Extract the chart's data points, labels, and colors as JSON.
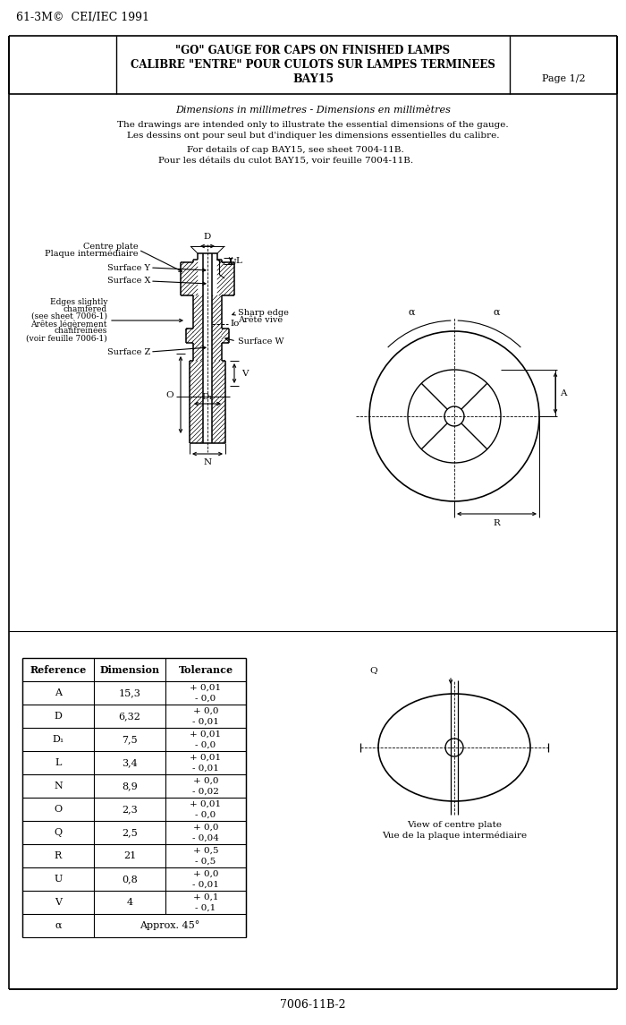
{
  "title_line1": "\"GO\" GAUGE FOR CAPS ON FINISHED LAMPS",
  "title_line2": "CALIBRE \"ENTRE\" POUR CULOTS SUR LAMPES TERMINEES",
  "title_line3": "BAY15",
  "page": "Page 1/2",
  "copyright": "61-3M©  CEI/IEC 1991",
  "footer": "7006-11B-2",
  "desc_line1": "Dimensions in millimetres - Dimensions en millimètres",
  "desc_line2": "The drawings are intended only to illustrate the essential dimensions of the gauge.",
  "desc_line3": "Les dessins ont pour seul but d'indiquer les dimensions essentielles du calibre.",
  "desc_line4": "For details of cap BAY15, see sheet 7004-11B.",
  "desc_line5": "Pour les détails du culot BAY15, voir feuille 7004-11B.",
  "table_headers": [
    "Reference",
    "Dimension",
    "Tolerance"
  ],
  "table_data": [
    [
      "A",
      "15,3",
      "+ 0,01\n- 0,0"
    ],
    [
      "D",
      "6,32",
      "+ 0,0\n- 0,01"
    ],
    [
      "D₁",
      "7,5",
      "+ 0,01\n- 0,0"
    ],
    [
      "L",
      "3,4",
      "+ 0,01\n- 0,01"
    ],
    [
      "N",
      "8,9",
      "+ 0,0\n- 0,02"
    ],
    [
      "O",
      "2,3",
      "+ 0,01\n- 0,0"
    ],
    [
      "Q",
      "2,5",
      "+ 0,0\n- 0,04"
    ],
    [
      "R",
      "21",
      "+ 0,5\n- 0,5"
    ],
    [
      "U",
      "0,8",
      "+ 0,0\n- 0,01"
    ],
    [
      "V",
      "4",
      "+ 0,1\n- 0,1"
    ],
    [
      "α",
      "",
      "Approx. 45°"
    ]
  ],
  "bg_color": "#ffffff",
  "line_color": "#000000"
}
